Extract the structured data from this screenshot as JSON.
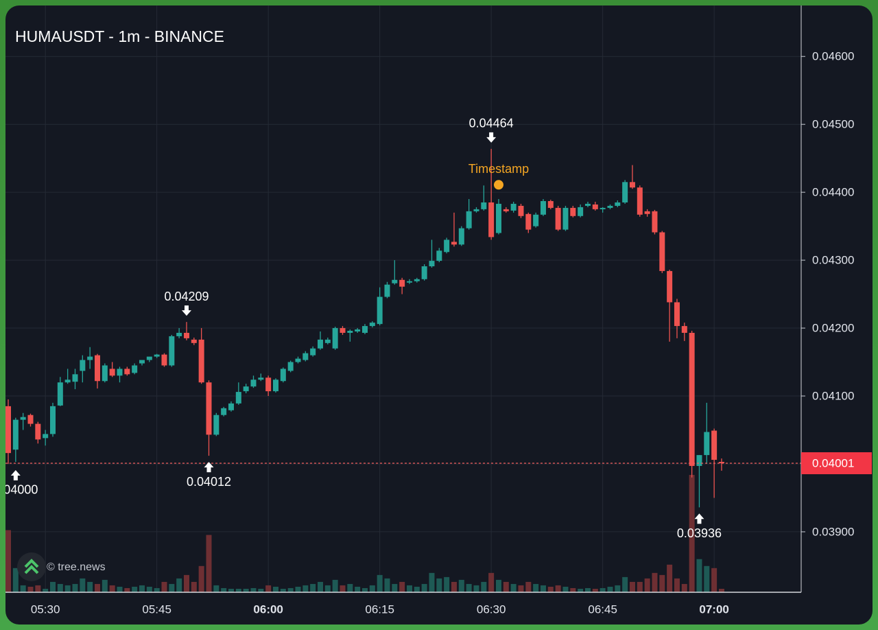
{
  "chart_data": {
    "type": "candlestick",
    "title": "HUMAUSDT - 1m - BINANCE",
    "x": [
      "05:25",
      "05:26",
      "05:27",
      "05:28",
      "05:29",
      "05:30",
      "05:31",
      "05:32",
      "05:33",
      "05:34",
      "05:35",
      "05:36",
      "05:37",
      "05:38",
      "05:39",
      "05:40",
      "05:41",
      "05:42",
      "05:43",
      "05:44",
      "05:45",
      "05:46",
      "05:47",
      "05:48",
      "05:49",
      "05:50",
      "05:51",
      "05:52",
      "05:53",
      "05:54",
      "05:55",
      "05:56",
      "05:57",
      "05:58",
      "05:59",
      "06:00",
      "06:01",
      "06:02",
      "06:03",
      "06:04",
      "06:05",
      "06:06",
      "06:07",
      "06:08",
      "06:09",
      "06:10",
      "06:11",
      "06:12",
      "06:13",
      "06:14",
      "06:15",
      "06:16",
      "06:17",
      "06:18",
      "06:19",
      "06:20",
      "06:21",
      "06:22",
      "06:23",
      "06:24",
      "06:25",
      "06:26",
      "06:27",
      "06:28",
      "06:29",
      "06:30",
      "06:31",
      "06:32",
      "06:33",
      "06:34",
      "06:35",
      "06:36",
      "06:37",
      "06:38",
      "06:39",
      "06:40",
      "06:41",
      "06:42",
      "06:43",
      "06:44",
      "06:45",
      "06:46",
      "06:47",
      "06:48",
      "06:49",
      "06:50",
      "06:51",
      "06:52",
      "06:53",
      "06:54",
      "06:55",
      "06:56",
      "06:57",
      "06:58",
      "06:59",
      "07:00",
      "07:01"
    ],
    "open": [
      0.04085,
      0.04021,
      0.04065,
      0.04072,
      0.04059,
      0.04038,
      0.04044,
      0.04086,
      0.0412,
      0.04121,
      0.04137,
      0.04153,
      0.0416,
      0.04122,
      0.0414,
      0.0413,
      0.0414,
      0.04134,
      0.04148,
      0.04153,
      0.04158,
      0.04161,
      0.04145,
      0.04188,
      0.04193,
      0.04183,
      0.04183,
      0.0412,
      0.04043,
      0.04072,
      0.04079,
      0.04089,
      0.04107,
      0.04114,
      0.04124,
      0.04127,
      0.04107,
      0.04122,
      0.04137,
      0.0415,
      0.04153,
      0.0416,
      0.0417,
      0.04178,
      0.0417,
      0.042,
      0.04193,
      0.04195,
      0.04193,
      0.04203,
      0.04206,
      0.04246,
      0.04266,
      0.04271,
      0.04267,
      0.04269,
      0.04272,
      0.04291,
      0.04299,
      0.04312,
      0.04327,
      0.04323,
      0.04347,
      0.04372,
      0.04375,
      0.04385,
      0.0434,
      0.04375,
      0.04373,
      0.0438,
      0.04368,
      0.0435,
      0.04367,
      0.04387,
      0.04377,
      0.04345,
      0.04377,
      0.04365,
      0.0438,
      0.04382,
      0.04375,
      0.04377,
      0.0438,
      0.04385,
      0.04415,
      0.04407,
      0.04372,
      0.04372,
      0.04341,
      0.04284,
      0.04238,
      0.04203,
      0.04193,
      0.03997,
      0.04013,
      0.04049,
      0.04003
    ],
    "high": [
      0.04095,
      0.04068,
      0.04075,
      0.04074,
      0.04062,
      0.0405,
      0.0409,
      0.04128,
      0.0414,
      0.0414,
      0.0416,
      0.04172,
      0.04162,
      0.04148,
      0.0415,
      0.04143,
      0.04143,
      0.04148,
      0.04152,
      0.04156,
      0.04162,
      0.04163,
      0.0419,
      0.042,
      0.04209,
      0.04186,
      0.042,
      0.04123,
      0.04075,
      0.04084,
      0.04092,
      0.0412,
      0.04118,
      0.0413,
      0.04133,
      0.0413,
      0.04126,
      0.04142,
      0.04152,
      0.04158,
      0.04166,
      0.04173,
      0.04195,
      0.04186,
      0.04202,
      0.04203,
      0.04198,
      0.042,
      0.04206,
      0.0421,
      0.0426,
      0.04268,
      0.043,
      0.04274,
      0.04272,
      0.04274,
      0.04294,
      0.0433,
      0.04318,
      0.04333,
      0.0437,
      0.0435,
      0.0439,
      0.04378,
      0.0441,
      0.04464,
      0.0439,
      0.04378,
      0.04386,
      0.04383,
      0.0437,
      0.0437,
      0.0439,
      0.04389,
      0.0438,
      0.0438,
      0.0438,
      0.04382,
      0.04386,
      0.04386,
      0.04378,
      0.04382,
      0.04388,
      0.04418,
      0.0444,
      0.0441,
      0.04375,
      0.04374,
      0.04343,
      0.04286,
      0.04243,
      0.04208,
      0.04196,
      0.04013,
      0.0409,
      0.04052,
      0.04008
    ],
    "low": [
      0.04,
      0.04003,
      0.0405,
      0.04055,
      0.0403,
      0.04027,
      0.0404,
      0.04085,
      0.04118,
      0.0411,
      0.0412,
      0.0414,
      0.04111,
      0.0412,
      0.04128,
      0.0412,
      0.0413,
      0.04132,
      0.04145,
      0.0415,
      0.04156,
      0.04143,
      0.04143,
      0.04185,
      0.04182,
      0.04175,
      0.04118,
      0.04012,
      0.04041,
      0.0407,
      0.04077,
      0.04087,
      0.04104,
      0.04112,
      0.04122,
      0.041,
      0.04105,
      0.0412,
      0.04135,
      0.04148,
      0.04151,
      0.04158,
      0.04168,
      0.04176,
      0.04168,
      0.0419,
      0.0418,
      0.04193,
      0.04191,
      0.04201,
      0.04204,
      0.04244,
      0.04264,
      0.0425,
      0.04265,
      0.04267,
      0.0427,
      0.04289,
      0.04297,
      0.0431,
      0.0432,
      0.04321,
      0.04345,
      0.0437,
      0.04373,
      0.0433,
      0.04338,
      0.0437,
      0.0437,
      0.04362,
      0.0434,
      0.04348,
      0.04365,
      0.04375,
      0.04343,
      0.04343,
      0.04363,
      0.04363,
      0.04378,
      0.04373,
      0.0437,
      0.04375,
      0.04378,
      0.04383,
      0.04405,
      0.04364,
      0.04364,
      0.04338,
      0.04281,
      0.0418,
      0.04185,
      0.04181,
      0.0398,
      0.03936,
      0.04,
      0.0395,
      0.0399
    ],
    "close": [
      0.04016,
      0.04065,
      0.04069,
      0.04059,
      0.04036,
      0.04044,
      0.04085,
      0.0412,
      0.04124,
      0.04132,
      0.04153,
      0.04158,
      0.04122,
      0.04145,
      0.0413,
      0.0414,
      0.04132,
      0.04145,
      0.04153,
      0.04158,
      0.04161,
      0.04145,
      0.04188,
      0.04193,
      0.04185,
      0.04178,
      0.0412,
      0.04043,
      0.04072,
      0.04082,
      0.04089,
      0.04106,
      0.04114,
      0.04124,
      0.04127,
      0.04107,
      0.04124,
      0.0414,
      0.0415,
      0.04155,
      0.04163,
      0.0417,
      0.04183,
      0.04183,
      0.042,
      0.04193,
      0.04196,
      0.04198,
      0.04203,
      0.04208,
      0.04246,
      0.04264,
      0.04271,
      0.04261,
      0.04269,
      0.04272,
      0.04291,
      0.04299,
      0.04314,
      0.0433,
      0.04323,
      0.04347,
      0.04372,
      0.04375,
      0.04385,
      0.04334,
      0.04383,
      0.04372,
      0.04383,
      0.04365,
      0.04345,
      0.04367,
      0.04387,
      0.04377,
      0.04345,
      0.04377,
      0.04365,
      0.04378,
      0.04383,
      0.04375,
      0.04377,
      0.0438,
      0.04385,
      0.04415,
      0.04407,
      0.04367,
      0.04368,
      0.04341,
      0.04284,
      0.04238,
      0.04203,
      0.04193,
      0.03997,
      0.04013,
      0.04047,
      0.04006,
      0.04001
    ],
    "volume": [
      90,
      35,
      10,
      8,
      10,
      5,
      15,
      12,
      10,
      12,
      20,
      15,
      12,
      18,
      10,
      8,
      6,
      8,
      10,
      8,
      6,
      15,
      12,
      20,
      25,
      15,
      38,
      83,
      10,
      6,
      5,
      5,
      5,
      6,
      5,
      10,
      8,
      5,
      6,
      8,
      10,
      12,
      15,
      10,
      18,
      10,
      12,
      8,
      6,
      10,
      25,
      20,
      12,
      15,
      10,
      8,
      12,
      28,
      20,
      22,
      15,
      18,
      12,
      10,
      15,
      28,
      18,
      15,
      12,
      10,
      15,
      12,
      10,
      8,
      10,
      8,
      6,
      5,
      6,
      5,
      6,
      8,
      10,
      22,
      15,
      15,
      20,
      28,
      25,
      40,
      20,
      12,
      170,
      48,
      38,
      35,
      5
    ],
    "up_color": "#26a69a",
    "down_color": "#ef5350",
    "ylim": [
      0.03811,
      0.04673
    ],
    "yticks": [
      {
        "value": 0.039,
        "label": "0.03900"
      },
      {
        "value": 0.04,
        "label": "0.04000"
      },
      {
        "value": 0.041,
        "label": "0.04100"
      },
      {
        "value": 0.042,
        "label": "0.04200"
      },
      {
        "value": 0.043,
        "label": "0.04300"
      },
      {
        "value": 0.044,
        "label": "0.04400"
      },
      {
        "value": 0.045,
        "label": "0.04500"
      },
      {
        "value": 0.046,
        "label": "0.04600"
      }
    ],
    "xticks": [
      "05:30",
      "05:45",
      "06:00",
      "06:15",
      "06:30",
      "06:45",
      "07:00"
    ],
    "grid": true,
    "last_price": {
      "value": 0.04001,
      "label": "0.04001"
    },
    "annotations": [
      {
        "x": "05:26",
        "value": {
          "value": 0.04,
          "label": "0.04000"
        },
        "direction": "up"
      },
      {
        "x": "05:49",
        "value": 0.04209,
        "direction": "down"
      },
      {
        "x": "05:52",
        "value": 0.04012,
        "direction": "up"
      },
      {
        "x": "06:30",
        "value": 0.04464,
        "direction": "down"
      },
      {
        "x": "06:58",
        "value": 0.03936,
        "direction": "up"
      }
    ],
    "marker": {
      "label": "Timestamp",
      "x": "06:31",
      "value": 0.04411,
      "color": "#f5a623"
    },
    "watermark": "© tree.news"
  }
}
